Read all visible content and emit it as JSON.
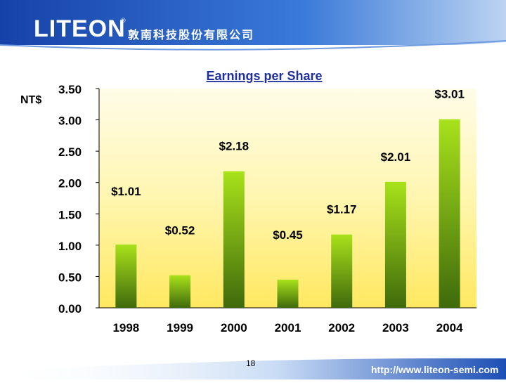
{
  "header": {
    "logo_text": "LITEON",
    "logo_reg": "®",
    "company_name": "敦南科技股份有限公司"
  },
  "footer": {
    "page_number": "18",
    "url": "http://www.liteon-semi.com"
  },
  "colors": {
    "header_blue": "#1a4fb8",
    "bar_top": "#a8e21a",
    "bar_bottom": "#3f6a0c",
    "plot_bg_light": "#fffbe0",
    "plot_bg_yellow": "#ffef80",
    "title_blue": "#1f2f9e"
  },
  "chart_data": {
    "type": "bar",
    "title": "Earnings per Share",
    "ylabel": "NT$",
    "categories": [
      "1998",
      "1999",
      "2000",
      "2001",
      "2002",
      "2003",
      "2004"
    ],
    "values": [
      1.01,
      0.52,
      2.18,
      0.45,
      1.17,
      2.01,
      3.01
    ],
    "data_labels": [
      "$1.01",
      "$0.52",
      "$2.18",
      "$0.45",
      "$1.17",
      "$2.01",
      "$3.01"
    ],
    "yticks": [
      "0.00",
      "0.50",
      "1.00",
      "1.50",
      "2.00",
      "2.50",
      "3.00",
      "3.50"
    ],
    "ylim": [
      0,
      3.5
    ],
    "grid": false
  }
}
